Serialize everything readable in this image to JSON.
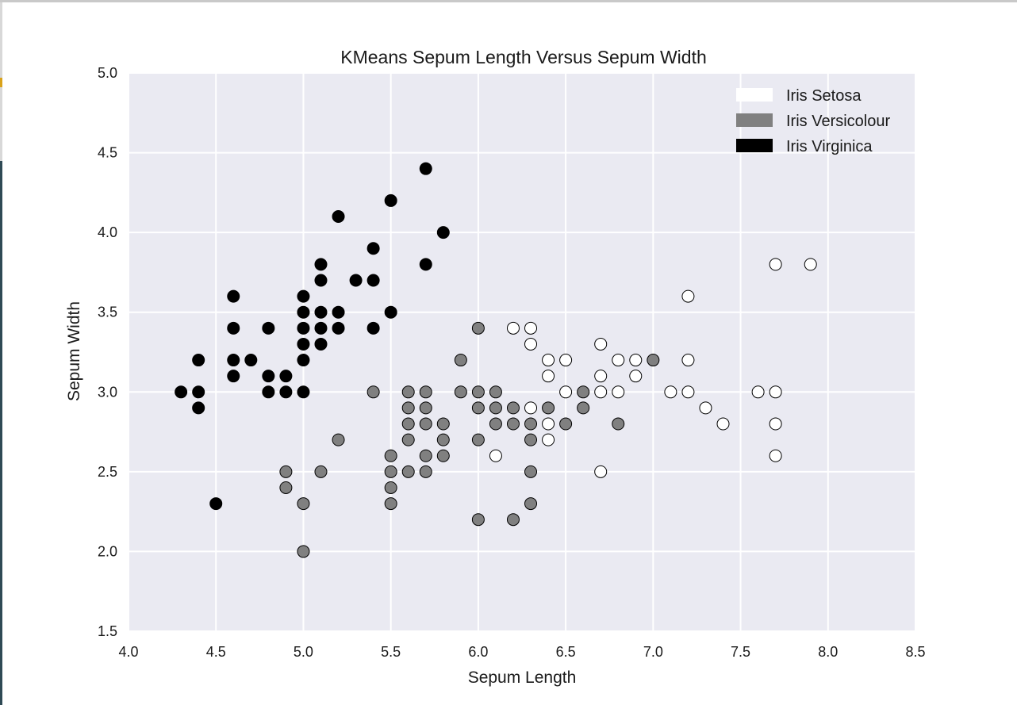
{
  "chart_data": {
    "type": "scatter",
    "title": "KMeans Sepum Length Versus Sepum Width",
    "xlabel": "Sepum Length",
    "ylabel": "Sepum Width",
    "xlim": [
      4.0,
      8.5
    ],
    "ylim": [
      1.5,
      5.0
    ],
    "xticks": [
      "4.0",
      "4.5",
      "5.0",
      "5.5",
      "6.0",
      "6.5",
      "7.0",
      "7.5",
      "8.0",
      "8.5"
    ],
    "yticks": [
      "1.5",
      "2.0",
      "2.5",
      "3.0",
      "3.5",
      "4.0",
      "4.5",
      "5.0"
    ],
    "grid": true,
    "legend_position": "top-right",
    "background": "#eaeaf2",
    "series": [
      {
        "name": "Iris Setosa",
        "color": "#ffffff",
        "points": [
          [
            6.2,
            3.4
          ],
          [
            6.3,
            3.4
          ],
          [
            6.3,
            3.3
          ],
          [
            6.3,
            2.9
          ],
          [
            6.1,
            2.6
          ],
          [
            6.4,
            3.2
          ],
          [
            6.4,
            3.1
          ],
          [
            6.4,
            2.8
          ],
          [
            6.4,
            2.7
          ],
          [
            6.5,
            3.2
          ],
          [
            6.5,
            3.0
          ],
          [
            6.7,
            3.3
          ],
          [
            6.7,
            3.1
          ],
          [
            6.7,
            3.0
          ],
          [
            6.7,
            2.5
          ],
          [
            6.8,
            3.2
          ],
          [
            6.8,
            3.0
          ],
          [
            6.9,
            3.2
          ],
          [
            6.9,
            3.1
          ],
          [
            7.1,
            3.0
          ],
          [
            7.2,
            3.6
          ],
          [
            7.2,
            3.2
          ],
          [
            7.2,
            3.0
          ],
          [
            7.3,
            2.9
          ],
          [
            7.4,
            2.8
          ],
          [
            7.6,
            3.0
          ],
          [
            7.7,
            3.8
          ],
          [
            7.7,
            3.0
          ],
          [
            7.7,
            2.8
          ],
          [
            7.7,
            2.6
          ],
          [
            7.9,
            3.8
          ]
        ]
      },
      {
        "name": "Iris Versicolour",
        "color": "#808080",
        "points": [
          [
            4.9,
            2.5
          ],
          [
            4.9,
            2.4
          ],
          [
            5.0,
            2.3
          ],
          [
            5.0,
            2.0
          ],
          [
            5.1,
            2.5
          ],
          [
            5.2,
            2.7
          ],
          [
            5.4,
            3.0
          ],
          [
            5.5,
            2.6
          ],
          [
            5.5,
            2.5
          ],
          [
            5.5,
            2.4
          ],
          [
            5.5,
            2.3
          ],
          [
            5.6,
            3.0
          ],
          [
            5.6,
            2.9
          ],
          [
            5.6,
            2.8
          ],
          [
            5.6,
            2.7
          ],
          [
            5.6,
            2.5
          ],
          [
            5.7,
            3.0
          ],
          [
            5.7,
            2.9
          ],
          [
            5.7,
            2.8
          ],
          [
            5.7,
            2.6
          ],
          [
            5.7,
            2.5
          ],
          [
            5.8,
            2.8
          ],
          [
            5.8,
            2.7
          ],
          [
            5.8,
            2.6
          ],
          [
            5.9,
            3.2
          ],
          [
            5.9,
            3.0
          ],
          [
            6.0,
            3.4
          ],
          [
            6.0,
            3.0
          ],
          [
            6.0,
            2.9
          ],
          [
            6.0,
            2.7
          ],
          [
            6.0,
            2.2
          ],
          [
            6.1,
            3.0
          ],
          [
            6.1,
            2.9
          ],
          [
            6.1,
            2.8
          ],
          [
            6.2,
            2.9
          ],
          [
            6.2,
            2.8
          ],
          [
            6.2,
            2.2
          ],
          [
            6.3,
            2.8
          ],
          [
            6.3,
            2.7
          ],
          [
            6.3,
            2.5
          ],
          [
            6.3,
            2.3
          ],
          [
            6.4,
            2.9
          ],
          [
            6.5,
            2.8
          ],
          [
            6.6,
            3.0
          ],
          [
            6.6,
            2.9
          ],
          [
            6.8,
            2.8
          ],
          [
            7.0,
            3.2
          ]
        ]
      },
      {
        "name": "Iris Virginica",
        "color": "#000000",
        "points": [
          [
            4.3,
            3.0
          ],
          [
            4.4,
            3.2
          ],
          [
            4.4,
            3.0
          ],
          [
            4.4,
            2.9
          ],
          [
            4.5,
            2.3
          ],
          [
            4.6,
            3.6
          ],
          [
            4.6,
            3.4
          ],
          [
            4.6,
            3.2
          ],
          [
            4.6,
            3.1
          ],
          [
            4.7,
            3.2
          ],
          [
            4.8,
            3.4
          ],
          [
            4.8,
            3.1
          ],
          [
            4.8,
            3.0
          ],
          [
            4.9,
            3.1
          ],
          [
            4.9,
            3.0
          ],
          [
            5.0,
            3.6
          ],
          [
            5.0,
            3.5
          ],
          [
            5.0,
            3.4
          ],
          [
            5.0,
            3.3
          ],
          [
            5.0,
            3.2
          ],
          [
            5.0,
            3.0
          ],
          [
            5.1,
            3.8
          ],
          [
            5.1,
            3.7
          ],
          [
            5.1,
            3.5
          ],
          [
            5.1,
            3.4
          ],
          [
            5.1,
            3.3
          ],
          [
            5.2,
            4.1
          ],
          [
            5.2,
            3.5
          ],
          [
            5.2,
            3.4
          ],
          [
            5.3,
            3.7
          ],
          [
            5.4,
            3.9
          ],
          [
            5.4,
            3.7
          ],
          [
            5.4,
            3.4
          ],
          [
            5.5,
            4.2
          ],
          [
            5.5,
            3.5
          ],
          [
            5.7,
            4.4
          ],
          [
            5.7,
            3.8
          ],
          [
            5.8,
            4.0
          ]
        ]
      }
    ]
  }
}
